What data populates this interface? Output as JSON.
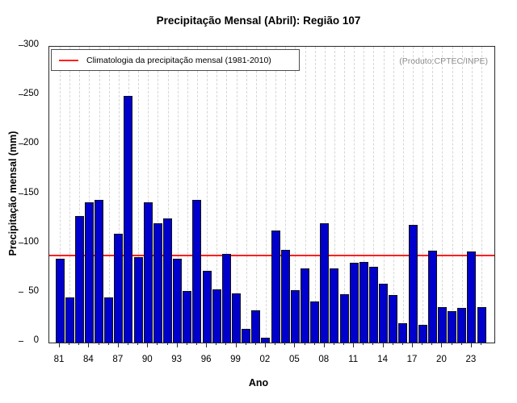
{
  "title": "Precipitação Mensal (Abril): Região 107",
  "ylabel": "Precipitação mensal (mm)",
  "xlabel": "Ano",
  "legend": {
    "label": "Climatologia da precipitação mensal (1981-2010)"
  },
  "annotation": "(Produto:CPTEC/INPE)",
  "colors": {
    "bar_fill": "#0000cc",
    "bar_edge": "#111111",
    "climatology_line": "#ff1f1f",
    "grid": "#d6d6d6",
    "axis": "#2a2a2a",
    "annotation_text": "#8e8e8e"
  },
  "chart_data": {
    "type": "bar",
    "title": "Precipitação Mensal (Abril): Região 107",
    "xlabel": "Ano",
    "ylabel": "Precipitação mensal (mm)",
    "categories": [
      "81",
      "82",
      "83",
      "84",
      "85",
      "86",
      "87",
      "88",
      "89",
      "90",
      "91",
      "92",
      "93",
      "94",
      "95",
      "96",
      "97",
      "98",
      "99",
      "00",
      "01",
      "02",
      "03",
      "04",
      "05",
      "06",
      "07",
      "08",
      "09",
      "10",
      "11",
      "12",
      "13",
      "14",
      "15",
      "16",
      "17",
      "18",
      "19",
      "20",
      "21",
      "22",
      "23",
      "24"
    ],
    "values": [
      85,
      46,
      128,
      142,
      145,
      46,
      110,
      250,
      87,
      142,
      121,
      126,
      85,
      52,
      145,
      73,
      54,
      90,
      50,
      14,
      33,
      5,
      114,
      94,
      53,
      75,
      42,
      121,
      75,
      49,
      81,
      82,
      77,
      60,
      48,
      20,
      119,
      18,
      93,
      36,
      32,
      35,
      92,
      36
    ],
    "climatology_value": 88,
    "climatology_label": "Climatologia da precipitação mensal (1981-2010)",
    "ylim": [
      0,
      300
    ],
    "yticks": [
      0,
      50,
      100,
      150,
      200,
      250,
      300
    ],
    "xtick_label_step": 3,
    "grid": "vertical-dashed-per-year",
    "legend_position": "top-left-inside",
    "annotation": "(Produto:CPTEC/INPE)"
  }
}
